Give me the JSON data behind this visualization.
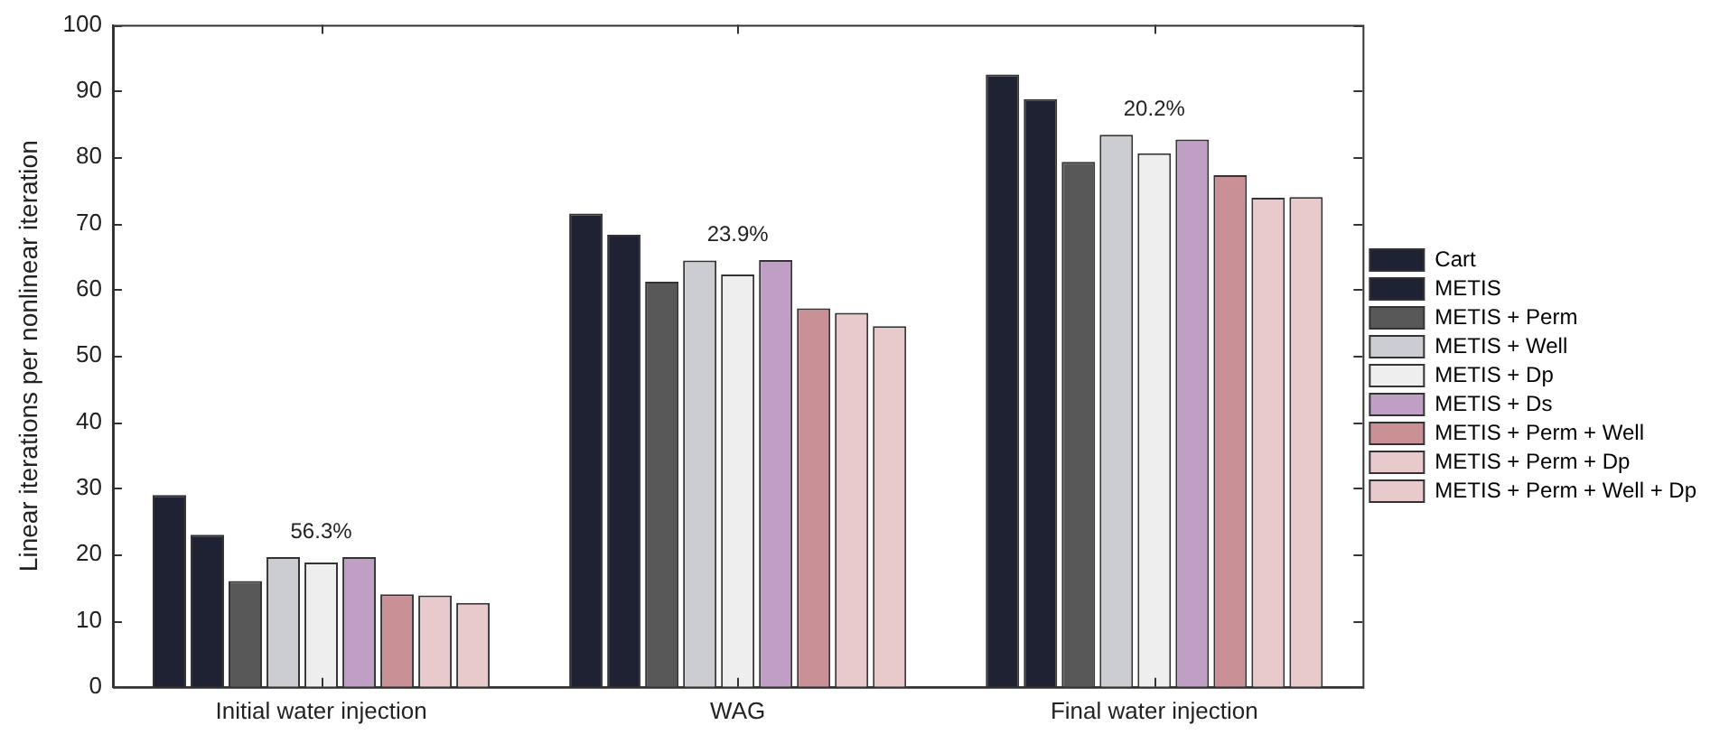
{
  "chart_data": {
    "type": "bar",
    "ylabel": "Linear iterations per nonlinear iteration",
    "categories": [
      "Initial water injection",
      "WAG",
      "Final water injection"
    ],
    "series": [
      {
        "name": "Cart",
        "color": "#1f2233",
        "values": [
          29,
          71.5,
          92.5
        ]
      },
      {
        "name": "METIS",
        "color": "#1f2233",
        "values": [
          23,
          68.3,
          88.8
        ]
      },
      {
        "name": "METIS + Perm",
        "color": "#585858",
        "values": [
          16,
          61.2,
          79.3
        ]
      },
      {
        "name": "METIS + Well",
        "color": "#cccdd2",
        "values": [
          19.6,
          64.4,
          83.4
        ]
      },
      {
        "name": "METIS + Dp",
        "color": "#eeeeee",
        "values": [
          18.8,
          62.3,
          80.6
        ]
      },
      {
        "name": "METIS + Ds",
        "color": "#bf9fc3",
        "values": [
          19.6,
          64.5,
          82.7
        ]
      },
      {
        "name": "METIS + Perm + Well",
        "color": "#c99096",
        "values": [
          14,
          57.2,
          77.3
        ]
      },
      {
        "name": "METIS + Perm + Dp",
        "color": "#e8c9cc",
        "values": [
          13.8,
          56.5,
          73.9
        ]
      },
      {
        "name": "METIS + Perm + Well + Dp",
        "color": "#e8c9cc",
        "values": [
          12.7,
          54.5,
          74
        ]
      }
    ],
    "ylim": [
      0,
      100
    ],
    "yticks": [
      0,
      10,
      20,
      30,
      40,
      50,
      60,
      70,
      80,
      90,
      100
    ],
    "legend": "right",
    "annotations": [
      "56.3%",
      "23.9%",
      "20.2%"
    ]
  }
}
